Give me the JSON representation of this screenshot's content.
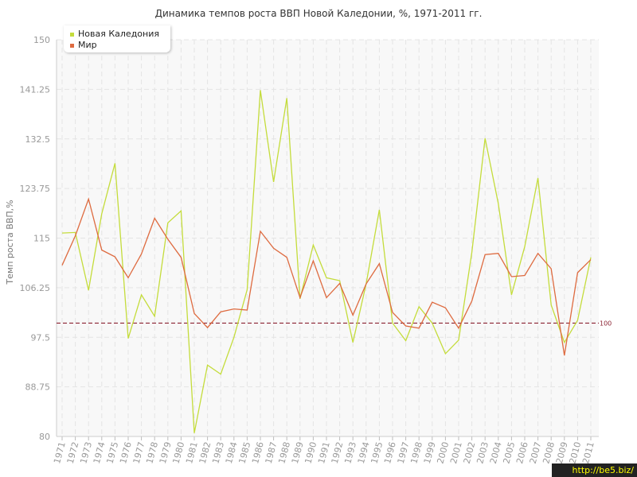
{
  "colors": {
    "new_caledonia": "#c4dc3b",
    "world": "#de6b40",
    "reference_line": "#8b2332",
    "grid": "#e4e4e4",
    "plot_background": "#f8f8f8",
    "axis_text": "#999999"
  },
  "watermark": "http://be5.biz/",
  "chart_data": {
    "type": "line",
    "title": "Динамика темпов роста ВВП Новой Каледонии, %, 1971-2011 гг.",
    "xlabel": "",
    "ylabel": "Темп роста ВВП,%",
    "ylim": [
      80,
      150
    ],
    "yticks": [
      "80",
      "88.75",
      "97.5",
      "106.25",
      "115",
      "123.75",
      "132.5",
      "141.25",
      "150"
    ],
    "grid": true,
    "legend_position": "top-left",
    "reference_line": {
      "value": 100,
      "label": "100"
    },
    "categories": [
      "1971",
      "1972",
      "1973",
      "1974",
      "1975",
      "1976",
      "1977",
      "1978",
      "1979",
      "1980",
      "1981",
      "1982",
      "1983",
      "1984",
      "1985",
      "1986",
      "1987",
      "1988",
      "1989",
      "1990",
      "1991",
      "1992",
      "1993",
      "1994",
      "1995",
      "1996",
      "1997",
      "1998",
      "1999",
      "2000",
      "2001",
      "2002",
      "2003",
      "2004",
      "2005",
      "2006",
      "2007",
      "2008",
      "2009",
      "2010",
      "2011"
    ],
    "series": [
      {
        "name": "Новая Каледония",
        "values": [
          115.9,
          116.0,
          105.8,
          119.3,
          128.2,
          97.3,
          105.0,
          101.2,
          117.7,
          119.8,
          80.6,
          92.6,
          91.0,
          97.5,
          105.9,
          141.1,
          124.9,
          139.7,
          104.3,
          113.8,
          108.0,
          107.5,
          96.6,
          106.9,
          120.0,
          100.0,
          96.9,
          102.9,
          100.0,
          94.6,
          97.0,
          112.5,
          132.6,
          121.1,
          105.0,
          113.5,
          125.6,
          103.2,
          96.6,
          100.5,
          111.6
        ]
      },
      {
        "name": "Мир",
        "values": [
          110.2,
          115.4,
          121.9,
          112.9,
          111.7,
          108.0,
          112.2,
          118.5,
          114.8,
          111.6,
          101.7,
          99.2,
          102.0,
          102.5,
          102.3,
          116.2,
          113.2,
          111.6,
          104.5,
          111.0,
          104.5,
          107.0,
          101.4,
          106.9,
          110.5,
          101.9,
          99.5,
          99.1,
          103.7,
          102.7,
          99.1,
          103.9,
          112.1,
          112.3,
          108.2,
          108.4,
          112.3,
          109.6,
          94.3,
          108.9,
          111.2
        ]
      }
    ]
  }
}
